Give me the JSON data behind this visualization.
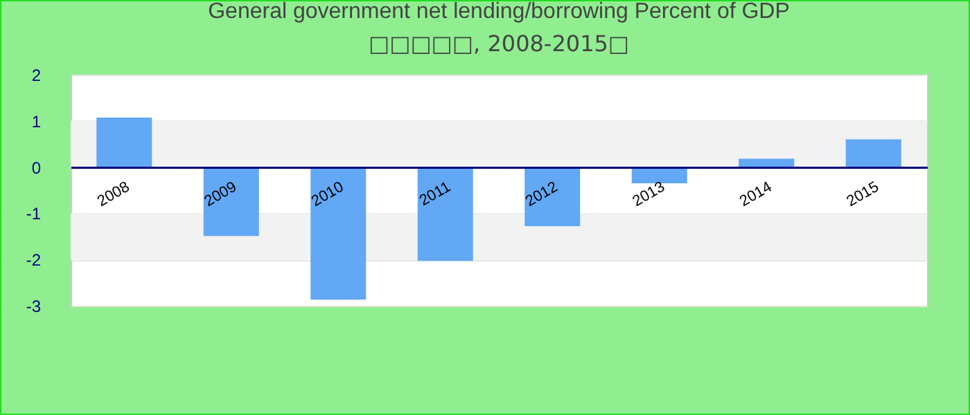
{
  "chart_data": {
    "type": "bar",
    "title": "General government net lending/borrowing  Percent of GDP",
    "subtitle": "□□□□□, 2008-2015□",
    "categories": [
      "2008",
      "2009",
      "2010",
      "2011",
      "2012",
      "2013",
      "2014",
      "2015"
    ],
    "values": [
      1.07,
      -1.49,
      -2.87,
      -2.03,
      -1.28,
      -0.35,
      0.18,
      0.6
    ],
    "color": "#62a8f5",
    "ylim": [
      -3,
      2
    ],
    "yticks": [
      -3,
      -2,
      -1,
      0,
      1,
      2
    ],
    "grid": "y"
  }
}
